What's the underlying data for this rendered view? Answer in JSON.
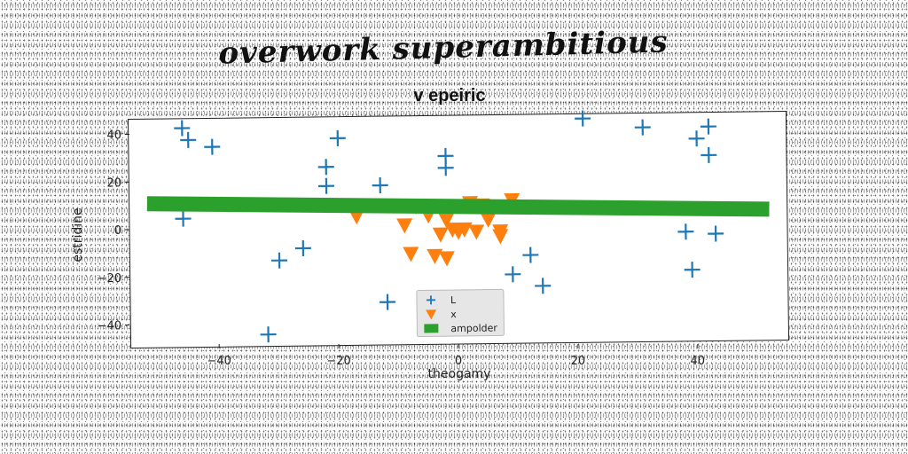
{
  "figure": {
    "title": "overwork superambitious"
  },
  "chart_data": {
    "type": "scatter",
    "title": "v epeiric",
    "xlabel": "theogamy",
    "ylabel": "estridine",
    "xlim": [
      -55,
      55
    ],
    "ylim": [
      -48,
      48
    ],
    "xticks": [
      -40,
      -20,
      0,
      20,
      40
    ],
    "yticks": [
      -40,
      -20,
      0,
      20,
      40
    ],
    "legend_position": "lower-center",
    "series": [
      {
        "name": "L",
        "marker": "plus",
        "color": "#1f77b4",
        "points": [
          [
            -46,
            44
          ],
          [
            -45,
            39
          ],
          [
            -41,
            36
          ],
          [
            -46,
            6
          ],
          [
            -32,
            -43
          ],
          [
            -30,
            -12
          ],
          [
            -26,
            -7
          ],
          [
            -22,
            27
          ],
          [
            -22,
            19
          ],
          [
            -20,
            39
          ],
          [
            -13,
            19
          ],
          [
            -12,
            -30
          ],
          [
            -2,
            31
          ],
          [
            -2,
            26
          ],
          [
            9,
            -19
          ],
          [
            12,
            -11
          ],
          [
            14,
            -24
          ],
          [
            21,
            46
          ],
          [
            31,
            42
          ],
          [
            38,
            -2
          ],
          [
            39,
            -18
          ],
          [
            40,
            37
          ],
          [
            42,
            42
          ],
          [
            42,
            30
          ],
          [
            43,
            -3
          ]
        ]
      },
      {
        "name": "x",
        "marker": "triangle-down",
        "color": "#ff7f0e",
        "points": [
          [
            -17,
            6
          ],
          [
            -9,
            2
          ],
          [
            -8,
            -10
          ],
          [
            -7,
            10
          ],
          [
            -5,
            6
          ],
          [
            -4,
            -11
          ],
          [
            -3,
            -2
          ],
          [
            -2,
            4
          ],
          [
            -2,
            -12
          ],
          [
            -1,
            0
          ],
          [
            0,
            -1
          ],
          [
            1,
            0
          ],
          [
            2,
            11
          ],
          [
            3,
            -1
          ],
          [
            5,
            4
          ],
          [
            7,
            -1
          ],
          [
            7,
            -3
          ],
          [
            9,
            12
          ],
          [
            4,
            10
          ]
        ]
      },
      {
        "name": "ampolder",
        "marker": "line",
        "color": "#2ca02c",
        "points": [
          [
            -52,
            12.5
          ],
          [
            52,
            7
          ]
        ]
      }
    ]
  }
}
